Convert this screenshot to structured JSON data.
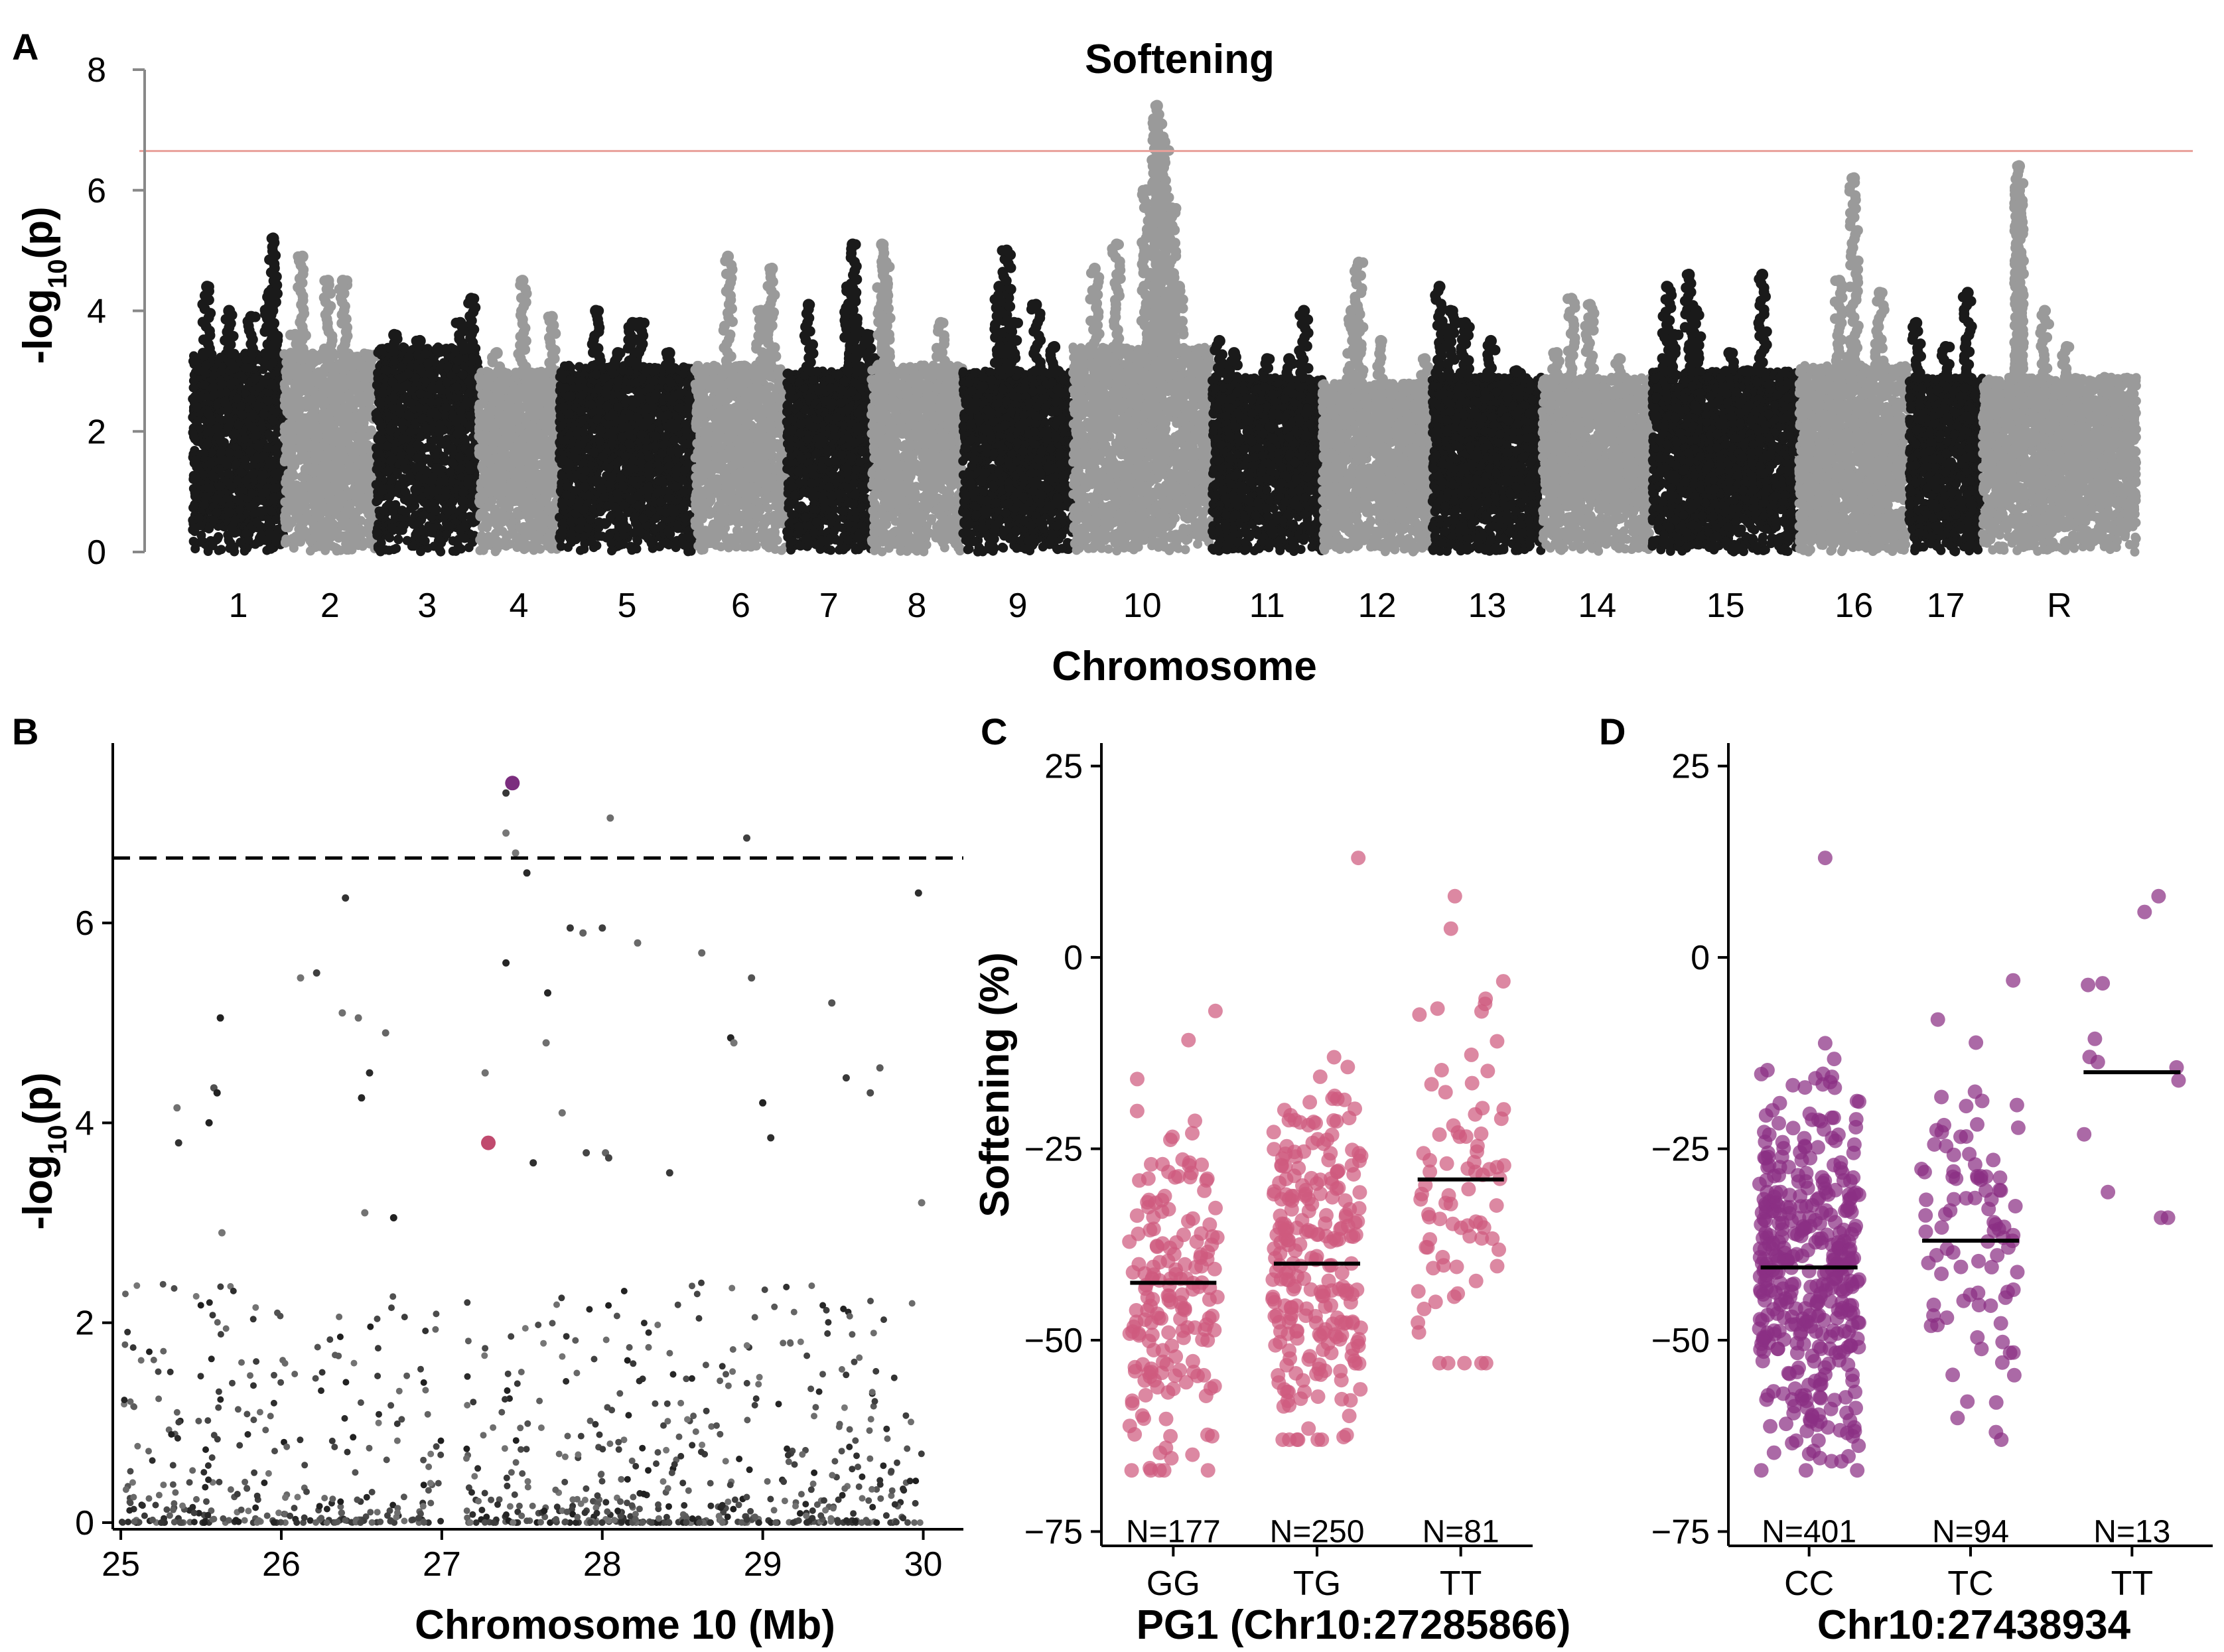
{
  "panels": {
    "A": {
      "letter": "A"
    },
    "B": {
      "letter": "B"
    },
    "C": {
      "letter": "C"
    },
    "D": {
      "letter": "D"
    }
  },
  "colors": {
    "chrom_dark": "#1a1a1a",
    "chrom_light": "#9a9a9a",
    "threshold_line": "#e8a09a",
    "lead_snp": "#7b2d7e",
    "pg1_snp": "#c04a6e",
    "genotype_C": "#cf5a7e",
    "genotype_D": "#8b2f84"
  },
  "chart_data": [
    {
      "panel": "A",
      "type": "scatter",
      "subtype": "manhattan",
      "title": "Softening",
      "xlabel": "Chromosome",
      "ylabel_main": "-log",
      "ylabel_sub": "10",
      "ylabel_tail": "(p)",
      "ylim": [
        0,
        8
      ],
      "yticks": [
        "0",
        "2",
        "4",
        "6",
        "8"
      ],
      "significance_threshold": 6.65,
      "chromosomes": [
        {
          "label": "1",
          "start": 0,
          "end": 2.5,
          "shade": "dark",
          "baseline_max": 3.3,
          "tops": [
            [
              0.4,
              4.4
            ],
            [
              1.0,
              4.0
            ],
            [
              2.2,
              5.2
            ],
            [
              2.1,
              4.3
            ],
            [
              1.6,
              3.9
            ]
          ]
        },
        {
          "label": "2",
          "start": 2.5,
          "end": 5.0,
          "shade": "light",
          "baseline_max": 3.3,
          "tops": [
            [
              0.5,
              4.9
            ],
            [
              1.2,
              4.5
            ],
            [
              1.6,
              4.5
            ],
            [
              0.3,
              3.6
            ]
          ]
        },
        {
          "label": "3",
          "start": 5.0,
          "end": 7.8,
          "shade": "dark",
          "baseline_max": 3.4,
          "tops": [
            [
              0.5,
              3.6
            ],
            [
              1.2,
              3.5
            ],
            [
              2.6,
              4.2
            ],
            [
              2.3,
              3.8
            ]
          ]
        },
        {
          "label": "4",
          "start": 7.8,
          "end": 10.0,
          "shade": "light",
          "baseline_max": 3.0,
          "tops": [
            [
              1.2,
              4.5
            ],
            [
              2.0,
              3.9
            ],
            [
              0.5,
              3.3
            ]
          ]
        },
        {
          "label": "5",
          "start": 10.0,
          "end": 13.7,
          "shade": "dark",
          "baseline_max": 3.1,
          "tops": [
            [
              1.0,
              4.0
            ],
            [
              2.0,
              3.8
            ],
            [
              2.2,
              3.8
            ],
            [
              1.6,
              3.3
            ],
            [
              3.0,
              3.3
            ]
          ]
        },
        {
          "label": "6",
          "start": 13.7,
          "end": 16.2,
          "shade": "light",
          "baseline_max": 3.1,
          "tops": [
            [
              0.9,
              4.9
            ],
            [
              2.1,
              4.7
            ],
            [
              1.8,
              4.0
            ]
          ]
        },
        {
          "label": "7",
          "start": 16.2,
          "end": 18.5,
          "shade": "dark",
          "baseline_max": 3.0,
          "tops": [
            [
              1.8,
              5.1
            ],
            [
              1.7,
              4.4
            ],
            [
              0.6,
              4.1
            ],
            [
              1.9,
              3.8
            ],
            [
              2.2,
              3.6
            ],
            [
              2.4,
              3.2
            ]
          ]
        },
        {
          "label": "8",
          "start": 18.5,
          "end": 21.0,
          "shade": "light",
          "baseline_max": 3.1,
          "tops": [
            [
              0.3,
              5.1
            ],
            [
              0.4,
              4.8
            ],
            [
              0.4,
              4.4
            ],
            [
              1.9,
              3.8
            ]
          ]
        },
        {
          "label": "9",
          "start": 21.0,
          "end": 24.0,
          "shade": "dark",
          "baseline_max": 3.0,
          "tops": [
            [
              1.0,
              4.4
            ],
            [
              1.4,
              3.8
            ],
            [
              2.0,
              4.1
            ],
            [
              1.2,
              5.0
            ],
            [
              2.5,
              3.4
            ]
          ]
        },
        {
          "label": "10",
          "start": 24.0,
          "end": 27.8,
          "shade": "light",
          "baseline_max": 3.4,
          "tops": [
            [
              1.2,
              5.1
            ],
            [
              2.0,
              6.0
            ],
            [
              2.3,
              7.4
            ],
            [
              2.4,
              7.1
            ],
            [
              2.5,
              6.8
            ],
            [
              2.2,
              6.5
            ],
            [
              2.7,
              5.7
            ],
            [
              2.9,
              4.4
            ],
            [
              0.6,
              4.7
            ]
          ]
        },
        {
          "label": "11",
          "start": 27.8,
          "end": 30.8,
          "shade": "dark",
          "baseline_max": 2.9,
          "tops": [
            [
              0.2,
              3.5
            ],
            [
              0.6,
              3.3
            ],
            [
              1.5,
              3.2
            ],
            [
              2.5,
              4.0
            ],
            [
              2.1,
              3.2
            ]
          ]
        },
        {
          "label": "12",
          "start": 30.8,
          "end": 33.8,
          "shade": "light",
          "baseline_max": 2.8,
          "tops": [
            [
              0.8,
              4.0
            ],
            [
              1.0,
              4.8
            ],
            [
              1.6,
              3.5
            ],
            [
              2.8,
              3.2
            ]
          ]
        },
        {
          "label": "13",
          "start": 33.8,
          "end": 36.8,
          "shade": "dark",
          "baseline_max": 2.9,
          "tops": [
            [
              0.2,
              4.4
            ],
            [
              0.5,
              4.0
            ],
            [
              0.9,
              3.8
            ],
            [
              1.6,
              3.5
            ],
            [
              2.3,
              3.0
            ]
          ]
        },
        {
          "label": "14",
          "start": 36.8,
          "end": 39.8,
          "shade": "light",
          "baseline_max": 2.9,
          "tops": [
            [
              0.8,
              4.2
            ],
            [
              1.3,
              4.1
            ],
            [
              0.4,
              3.3
            ],
            [
              2.1,
              3.2
            ]
          ]
        },
        {
          "label": "15",
          "start": 39.8,
          "end": 43.8,
          "shade": "dark",
          "baseline_max": 3.0,
          "tops": [
            [
              0.4,
              4.4
            ],
            [
              1.0,
              4.6
            ],
            [
              1.2,
              4.0
            ],
            [
              3.0,
              4.6
            ],
            [
              2.1,
              3.3
            ],
            [
              2.6,
              3.0
            ],
            [
              0.6,
              3.6
            ]
          ]
        },
        {
          "label": "16",
          "start": 43.8,
          "end": 46.8,
          "shade": "light",
          "baseline_max": 3.1,
          "tops": [
            [
              1.1,
              4.5
            ],
            [
              1.5,
              6.2
            ],
            [
              2.2,
              4.3
            ],
            [
              1.4,
              3.5
            ]
          ]
        },
        {
          "label": "17",
          "start": 46.8,
          "end": 48.8,
          "shade": "dark",
          "baseline_max": 2.9,
          "tops": [
            [
              0.2,
              3.8
            ],
            [
              1.6,
              4.3
            ],
            [
              1.0,
              3.4
            ]
          ]
        },
        {
          "label": "R",
          "start": 48.8,
          "end": 53.0,
          "shade": "light",
          "baseline_max": 2.9,
          "tops": [
            [
              1.0,
              6.4
            ],
            [
              1.0,
              6.0
            ],
            [
              1.0,
              5.9
            ],
            [
              1.0,
              4.6
            ],
            [
              1.0,
              4.4
            ],
            [
              1.7,
              4.0
            ],
            [
              2.3,
              3.4
            ],
            [
              3.4,
              2.8
            ]
          ]
        }
      ]
    },
    {
      "panel": "B",
      "type": "scatter",
      "subtype": "regional",
      "xlabel": "Chromosome 10 (Mb)",
      "ylabel_main": "-log",
      "ylabel_sub": "10",
      "ylabel_tail": "(p)",
      "xlim": [
        24.95,
        30.25
      ],
      "ylim": [
        0,
        7.8
      ],
      "xticks": [
        "25",
        "26",
        "27",
        "28",
        "29",
        "30"
      ],
      "yticks": [
        "0",
        "2",
        "4",
        "6"
      ],
      "significance_threshold": 6.65,
      "highlight_points": [
        {
          "x": 27.44,
          "y": 7.4,
          "color": "lead"
        },
        {
          "x": 27.29,
          "y": 3.8,
          "color": "pg1"
        }
      ],
      "notable_points": [
        [
          27.4,
          7.3
        ],
        [
          27.4,
          6.9
        ],
        [
          27.46,
          6.7
        ],
        [
          27.53,
          6.5
        ],
        [
          28.05,
          7.05
        ],
        [
          28.9,
          6.85
        ],
        [
          26.4,
          6.25
        ],
        [
          29.97,
          6.3
        ],
        [
          26.22,
          5.5
        ],
        [
          26.12,
          5.45
        ],
        [
          27.8,
          5.95
        ],
        [
          27.88,
          5.9
        ],
        [
          28.0,
          5.95
        ],
        [
          28.22,
          5.8
        ],
        [
          28.62,
          5.7
        ],
        [
          27.4,
          5.6
        ],
        [
          27.66,
          5.3
        ],
        [
          28.93,
          5.45
        ],
        [
          29.43,
          5.2
        ],
        [
          25.62,
          5.05
        ],
        [
          26.38,
          5.1
        ],
        [
          26.48,
          5.05
        ],
        [
          26.65,
          4.9
        ],
        [
          27.65,
          4.8
        ],
        [
          28.8,
          4.85
        ],
        [
          28.82,
          4.8
        ],
        [
          25.58,
          4.35
        ],
        [
          25.6,
          4.3
        ],
        [
          25.55,
          4.0
        ],
        [
          25.35,
          4.15
        ],
        [
          25.36,
          3.8
        ],
        [
          26.55,
          4.5
        ],
        [
          26.5,
          4.25
        ],
        [
          27.27,
          4.5
        ],
        [
          27.57,
          3.6
        ],
        [
          27.75,
          4.1
        ],
        [
          27.9,
          3.7
        ],
        [
          28.02,
          3.7
        ],
        [
          28.04,
          3.65
        ],
        [
          28.42,
          3.5
        ],
        [
          29.0,
          4.2
        ],
        [
          29.05,
          3.85
        ],
        [
          29.52,
          4.45
        ],
        [
          29.73,
          4.55
        ],
        [
          29.67,
          4.3
        ],
        [
          26.52,
          3.1
        ],
        [
          26.7,
          3.05
        ],
        [
          25.63,
          2.9
        ],
        [
          29.99,
          3.2
        ]
      ],
      "background_density": 900
    },
    {
      "panel": "C",
      "type": "scatter",
      "subtype": "genotype_strip",
      "ylabel": "Softening (%)",
      "xlabel": "PG1 (Chr10:27285866)",
      "ylim": [
        -76,
        28
      ],
      "yticks": [
        "25",
        "0",
        "-25",
        "-50",
        "-75"
      ],
      "ytick_values": [
        25,
        0,
        -25,
        -50,
        -75
      ],
      "groups": [
        {
          "genotype": "GG",
          "n_label": "N=177",
          "n": 177,
          "median": -42.5,
          "min": -67,
          "max": -7,
          "sd": 11
        },
        {
          "genotype": "TG",
          "n_label": "N=250",
          "n": 250,
          "median": -40,
          "min": -63,
          "max": 13,
          "sd": 12
        },
        {
          "genotype": "TT",
          "n_label": "N=81",
          "n": 81,
          "median": -29,
          "min": -53,
          "max": 8,
          "sd": 13
        }
      ]
    },
    {
      "panel": "D",
      "type": "scatter",
      "subtype": "genotype_strip",
      "xlabel": "Chr10:27438934",
      "ylim": [
        -76,
        28
      ],
      "yticks": [
        "25",
        "0",
        "-25",
        "-50",
        "-75"
      ],
      "ytick_values": [
        25,
        0,
        -25,
        -50,
        -75
      ],
      "groups": [
        {
          "genotype": "CC",
          "n_label": "N=401",
          "n": 401,
          "median": -40.5,
          "min": -67,
          "max": 13,
          "sd": 12
        },
        {
          "genotype": "TC",
          "n_label": "N=94",
          "n": 94,
          "median": -37,
          "min": -63,
          "max": -3,
          "sd": 11
        },
        {
          "genotype": "TT",
          "n_label": "N=13",
          "n": 13,
          "median": -15,
          "min": -34,
          "max": 8,
          "sd": 12
        }
      ]
    }
  ]
}
